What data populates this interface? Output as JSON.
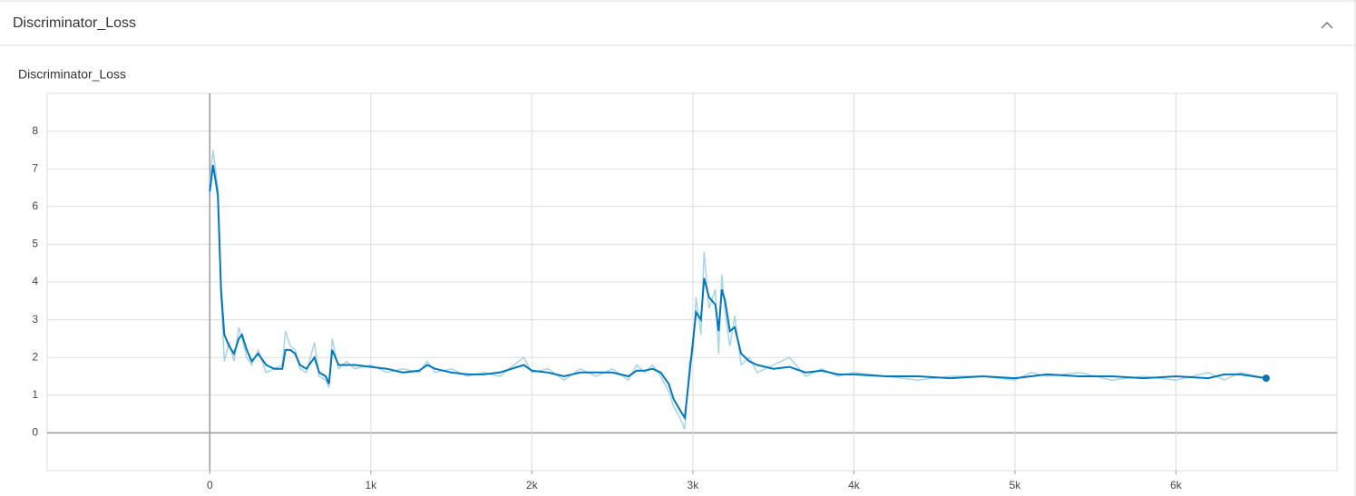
{
  "section": {
    "title": "Discriminator_Loss"
  },
  "chart_data": {
    "type": "line",
    "title": "Discriminator_Loss",
    "x": [
      0,
      20,
      50,
      70,
      90,
      120,
      150,
      180,
      200,
      230,
      260,
      300,
      350,
      400,
      450,
      470,
      500,
      530,
      560,
      600,
      650,
      680,
      720,
      740,
      760,
      800,
      850,
      900,
      1000,
      1100,
      1200,
      1300,
      1350,
      1400,
      1500,
      1600,
      1700,
      1800,
      1950,
      2000,
      2100,
      2200,
      2300,
      2400,
      2500,
      2600,
      2650,
      2700,
      2750,
      2800,
      2850,
      2880,
      2920,
      2950,
      2980,
      3000,
      3020,
      3050,
      3070,
      3100,
      3140,
      3160,
      3180,
      3200,
      3230,
      3260,
      3300,
      3350,
      3400,
      3500,
      3600,
      3700,
      3800,
      3900,
      4000,
      4200,
      4400,
      4600,
      4800,
      5000,
      5100,
      5200,
      5400,
      5600,
      5800,
      6000,
      6200,
      6300,
      6400,
      6560
    ],
    "series": [
      {
        "color": "#a8d4e8",
        "values": [
          6.6,
          7.5,
          6.5,
          3.6,
          1.9,
          2.4,
          1.9,
          2.8,
          2.5,
          2.0,
          1.8,
          2.2,
          1.6,
          1.7,
          1.8,
          2.7,
          2.3,
          2.2,
          1.7,
          1.6,
          2.4,
          1.5,
          1.4,
          1.2,
          2.5,
          1.7,
          1.9,
          1.7,
          1.8,
          1.6,
          1.7,
          1.6,
          1.9,
          1.6,
          1.7,
          1.5,
          1.6,
          1.5,
          2.0,
          1.6,
          1.7,
          1.4,
          1.7,
          1.5,
          1.7,
          1.4,
          1.8,
          1.6,
          1.8,
          1.5,
          1.1,
          0.7,
          0.4,
          0.1,
          1.9,
          2.1,
          3.6,
          2.6,
          4.8,
          3.3,
          3.8,
          2.1,
          4.2,
          3.2,
          2.3,
          3.1,
          1.8,
          2.0,
          1.6,
          1.8,
          2.0,
          1.5,
          1.7,
          1.5,
          1.6,
          1.5,
          1.4,
          1.5,
          1.5,
          1.4,
          1.6,
          1.5,
          1.6,
          1.4,
          1.5,
          1.4,
          1.6,
          1.4,
          1.6,
          1.45
        ]
      },
      {
        "color": "#0077bb",
        "values": [
          6.4,
          7.1,
          6.3,
          3.8,
          2.6,
          2.3,
          2.1,
          2.5,
          2.6,
          2.2,
          1.9,
          2.1,
          1.8,
          1.7,
          1.7,
          2.2,
          2.2,
          2.1,
          1.8,
          1.7,
          2.0,
          1.6,
          1.5,
          1.3,
          2.2,
          1.8,
          1.8,
          1.8,
          1.75,
          1.7,
          1.6,
          1.65,
          1.8,
          1.7,
          1.6,
          1.55,
          1.55,
          1.6,
          1.8,
          1.65,
          1.6,
          1.5,
          1.6,
          1.6,
          1.6,
          1.5,
          1.65,
          1.65,
          1.7,
          1.6,
          1.3,
          0.9,
          0.6,
          0.4,
          1.6,
          2.4,
          3.2,
          3.0,
          4.1,
          3.6,
          3.4,
          2.7,
          3.8,
          3.5,
          2.7,
          2.8,
          2.1,
          1.9,
          1.8,
          1.7,
          1.75,
          1.6,
          1.65,
          1.55,
          1.55,
          1.5,
          1.5,
          1.45,
          1.5,
          1.45,
          1.5,
          1.55,
          1.5,
          1.5,
          1.45,
          1.5,
          1.45,
          1.55,
          1.55,
          1.45
        ]
      }
    ],
    "xlim": [
      -1010,
      7000
    ],
    "ylim": [
      -1,
      9
    ],
    "xticks": [
      0,
      {
        "value": 1000,
        "label": "1k"
      },
      {
        "value": 2000,
        "label": "2k"
      },
      {
        "value": 3000,
        "label": "3k"
      },
      {
        "value": 4000,
        "label": "4k"
      },
      {
        "value": 5000,
        "label": "5k"
      },
      {
        "value": 6000,
        "label": "6k"
      }
    ],
    "yticks": [
      0,
      1,
      2,
      3,
      4,
      5,
      6,
      7,
      8
    ],
    "grid": true
  }
}
